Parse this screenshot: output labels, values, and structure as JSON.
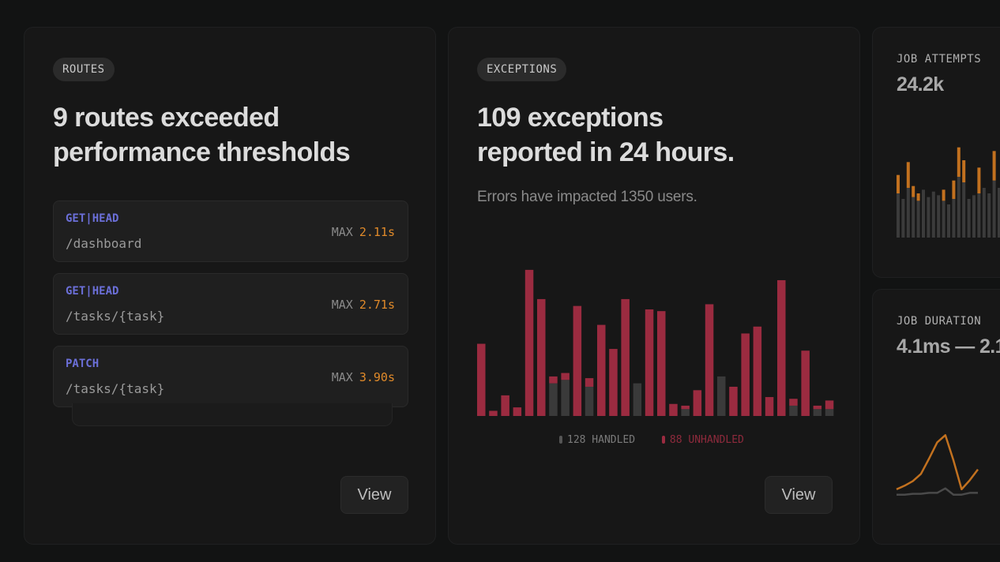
{
  "routes_card": {
    "pill": "ROUTES",
    "headline_line1": "9 routes exceeded",
    "headline_line2": "performance thresholds",
    "max_label": "MAX",
    "routes": [
      {
        "method": "GET|HEAD",
        "path": "/dashboard",
        "max": "2.11s"
      },
      {
        "method": "GET|HEAD",
        "path": "/tasks/{task}",
        "max": "2.71s"
      },
      {
        "method": "PATCH",
        "path": "/tasks/{task}",
        "max": "3.90s"
      }
    ],
    "view_label": "View"
  },
  "exceptions_card": {
    "pill": "EXCEPTIONS",
    "headline_line1": "109 exceptions",
    "headline_line2": "reported in 24 hours.",
    "subtext": "Errors have impacted 1350 users.",
    "legend_handled": "128 HANDLED",
    "legend_unhandled": "88 UNHANDLED",
    "view_label": "View"
  },
  "job_attempts": {
    "label": "JOB ATTEMPTS",
    "value": "24.2k"
  },
  "job_duration": {
    "label": "JOB DURATION",
    "value": "4.1ms — 2.1"
  },
  "colors": {
    "unhandled": "#9b2b40",
    "handled": "#3a3a3a",
    "accent_orange": "#e08a2a",
    "method_blue": "#6b6fd8"
  },
  "chart_data": [
    {
      "type": "bar",
      "title": "",
      "series": [
        {
          "name": "UNHANDLED",
          "values": [
            42,
            3,
            12,
            5,
            85,
            68,
            4,
            4,
            64,
            5,
            53,
            39,
            68,
            0,
            62,
            61,
            7,
            2,
            15,
            65,
            0,
            17,
            48,
            52,
            11,
            79,
            4,
            38,
            2,
            5
          ]
        },
        {
          "name": "HANDLED",
          "values": [
            0,
            0,
            0,
            0,
            0,
            0,
            19,
            21,
            0,
            17,
            0,
            0,
            0,
            19,
            0,
            0,
            0,
            4,
            0,
            0,
            23,
            0,
            0,
            0,
            0,
            0,
            6,
            0,
            4,
            4
          ]
        }
      ],
      "ylim": [
        0,
        90
      ]
    },
    {
      "type": "bar",
      "title": "",
      "series": [
        {
          "name": "base",
          "values": [
            24,
            21,
            27,
            22,
            20,
            26,
            22,
            25,
            23,
            20,
            18,
            21,
            33,
            30,
            21,
            23,
            24,
            27,
            24,
            31,
            27,
            32,
            30,
            23,
            22
          ]
        },
        {
          "name": "highlight",
          "values": [
            10,
            0,
            14,
            6,
            4,
            0,
            0,
            0,
            0,
            6,
            0,
            10,
            16,
            12,
            0,
            0,
            14,
            0,
            0,
            16,
            0,
            0,
            0,
            0,
            24
          ]
        }
      ],
      "ylim": [
        0,
        60
      ]
    },
    {
      "type": "line",
      "title": "",
      "series": [
        {
          "name": "primary",
          "values": [
            8,
            12,
            17,
            25,
            42,
            60,
            68,
            40,
            8,
            18,
            30
          ]
        },
        {
          "name": "secondary",
          "values": [
            2,
            2,
            3,
            3,
            4,
            4,
            9,
            2,
            2,
            4,
            4
          ]
        }
      ],
      "ylim": [
        0,
        70
      ]
    }
  ]
}
